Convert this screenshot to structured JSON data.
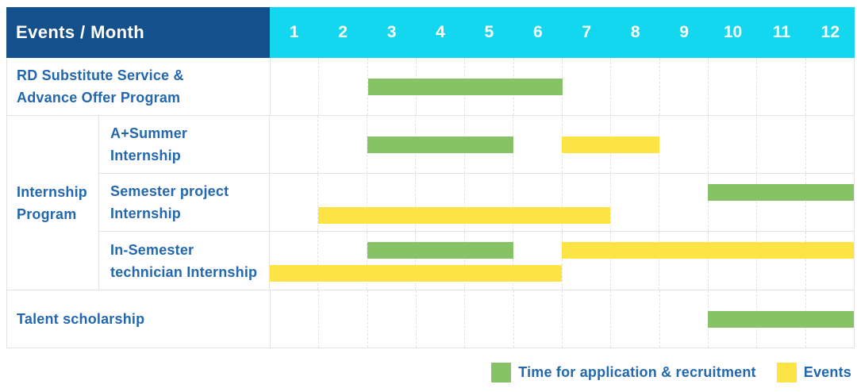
{
  "colors": {
    "header_bg": "#14508c",
    "months_bg": "#12d7ee",
    "label_text": "#2267af",
    "application_green": "#87c266",
    "events_yellow": "#fde344",
    "grid_line": "#e3e3e3"
  },
  "group_label": "Internship\nProgram",
  "chart_data": {
    "type": "bar",
    "subtype": "gantt-schedule",
    "title": "Events / Month",
    "xlabel": "Month",
    "x_ticks": [
      "1",
      "2",
      "3",
      "4",
      "5",
      "6",
      "7",
      "8",
      "9",
      "10",
      "11",
      "12"
    ],
    "x_range": [
      1,
      12
    ],
    "grid": true,
    "legend_position": "bottom-right",
    "legend": [
      {
        "name": "Time for application & recruitment",
        "color": "#87c266"
      },
      {
        "name": "Events",
        "color": "#fde344"
      }
    ],
    "tasks": [
      {
        "label": "RD Substitute Service &\nAdvance Offer Program",
        "group": "",
        "spans": [
          {
            "kind": "Time for application & recruitment",
            "color": "#87c266",
            "start_month": 3,
            "end_month": 6,
            "lane": "center"
          }
        ]
      },
      {
        "label": "A+Summer\nInternship",
        "group": "Internship Program",
        "spans": [
          {
            "kind": "Time for application & recruitment",
            "color": "#87c266",
            "start_month": 3,
            "end_month": 5,
            "lane": "center"
          },
          {
            "kind": "Events",
            "color": "#fde344",
            "start_month": 7,
            "end_month": 8,
            "lane": "center"
          }
        ]
      },
      {
        "label": "Semester project\nInternship",
        "group": "Internship Program",
        "spans": [
          {
            "kind": "Time for application & recruitment",
            "color": "#87c266",
            "start_month": 10,
            "end_month": 12,
            "lane": "top"
          },
          {
            "kind": "Events",
            "color": "#fde344",
            "start_month": 2,
            "end_month": 7,
            "lane": "bottom"
          }
        ]
      },
      {
        "label": "In-Semester\ntechnician Internship",
        "group": "Internship Program",
        "spans": [
          {
            "kind": "Time for application & recruitment",
            "color": "#87c266",
            "start_month": 3,
            "end_month": 5,
            "lane": "top"
          },
          {
            "kind": "Events",
            "color": "#fde344",
            "start_month": 7,
            "end_month": 12,
            "lane": "top"
          },
          {
            "kind": "Events",
            "color": "#fde344",
            "start_month": 1,
            "end_month": 6,
            "lane": "bottom"
          }
        ]
      },
      {
        "label": "Talent scholarship",
        "group": "",
        "spans": [
          {
            "kind": "Time for application & recruitment",
            "color": "#87c266",
            "start_month": 10,
            "end_month": 12,
            "lane": "center"
          }
        ]
      }
    ]
  }
}
